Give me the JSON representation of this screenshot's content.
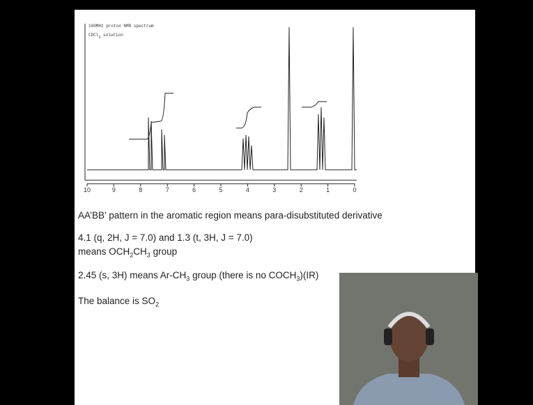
{
  "spectrum": {
    "title": "100MHz proton NMR spectrum",
    "solvent": [
      "CDCl",
      {
        "sub": "3"
      },
      " solution"
    ],
    "axis_labels": [
      "10",
      "9",
      "8",
      "7",
      "6",
      "5",
      "4",
      "3",
      "2",
      "1",
      "0"
    ]
  },
  "slide": {
    "lines": [
      [
        "AA’BB’ pattern in the aromatic region means para-disubstituted derivative"
      ],
      [
        "4.1 (q, 2H, J = 7.0) and 1.3 (t, 3H, J = 7.0)"
      ],
      [
        "means OCH",
        {
          "sub": "2"
        },
        "CH",
        {
          "sub": "3"
        },
        " group"
      ],
      [
        "2.45 (s, 3H) means Ar-CH",
        {
          "sub": "3"
        },
        " group (there is no COCH",
        {
          "sub": "3"
        },
        ")(IR)"
      ],
      [
        "The balance is SO",
        {
          "sub": "2"
        }
      ]
    ]
  }
}
